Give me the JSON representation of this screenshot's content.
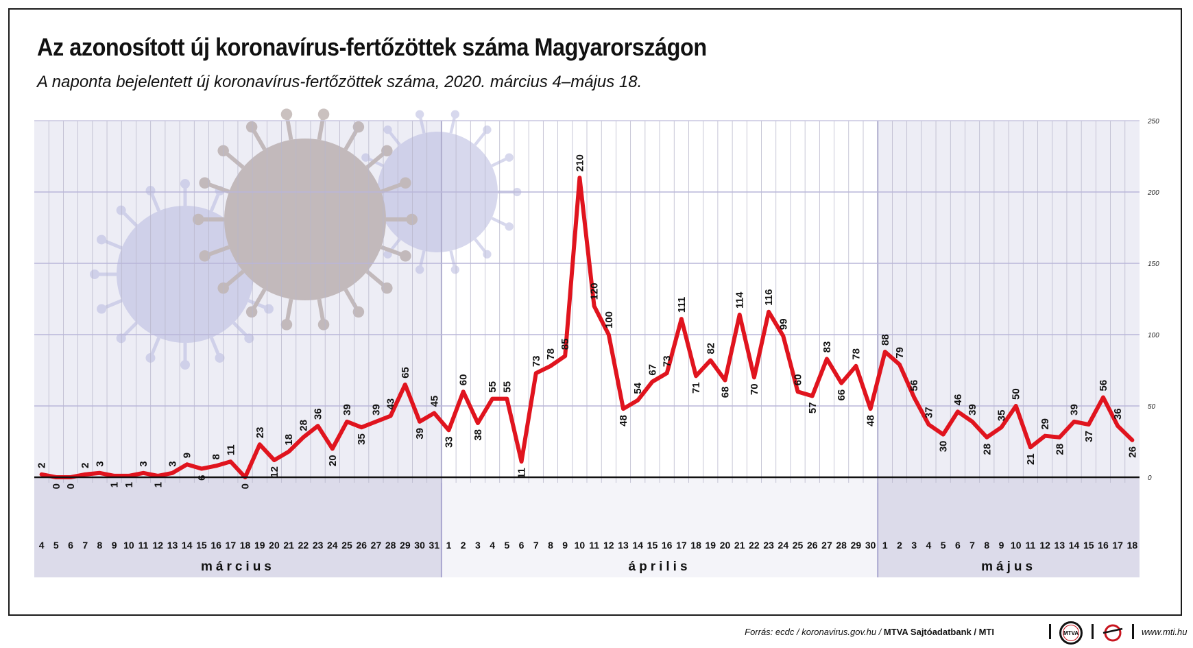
{
  "title": "Az azonosított új koronavírus-fertőzöttek száma Magyarországon",
  "subtitle": "A naponta bejelentett új koronavírus-fertőzöttek száma, 2020. március 4–május 18.",
  "footer": {
    "source_prefix": "Forrás: ecdc / koronavirus.gov.hu / ",
    "source_bold": "MTVA Sajtóadatbank / MTI",
    "logo_text": "MTVA",
    "website": "www.mti.hu"
  },
  "colors": {
    "line": "#e0141e",
    "shade": "#dcdbea",
    "shade_light": "#ededf5",
    "grid": "#b9b6d9"
  },
  "chart_data": {
    "type": "line",
    "ylim": [
      0,
      250
    ],
    "yticks": [
      0,
      50,
      100,
      150,
      200,
      250
    ],
    "months": [
      {
        "name": "március",
        "count": 28
      },
      {
        "name": "április",
        "count": 30
      },
      {
        "name": "május",
        "count": 18
      }
    ],
    "days": [
      "4",
      "5",
      "6",
      "7",
      "8",
      "9",
      "10",
      "11",
      "12",
      "13",
      "14",
      "15",
      "16",
      "17",
      "18",
      "19",
      "20",
      "21",
      "22",
      "23",
      "24",
      "25",
      "26",
      "27",
      "28",
      "29",
      "30",
      "31",
      "1",
      "2",
      "3",
      "4",
      "5",
      "6",
      "7",
      "8",
      "9",
      "10",
      "11",
      "12",
      "13",
      "14",
      "15",
      "16",
      "17",
      "18",
      "19",
      "20",
      "21",
      "22",
      "23",
      "24",
      "25",
      "26",
      "27",
      "28",
      "29",
      "30",
      "1",
      "2",
      "3",
      "4",
      "5",
      "6",
      "7",
      "8",
      "9",
      "10",
      "11",
      "12",
      "13",
      "14",
      "15",
      "16",
      "17",
      "18"
    ],
    "values": [
      2,
      0,
      0,
      2,
      3,
      1,
      1,
      3,
      1,
      3,
      9,
      6,
      8,
      11,
      0,
      23,
      12,
      18,
      28,
      36,
      20,
      39,
      35,
      39,
      43,
      65,
      39,
      45,
      33,
      60,
      38,
      55,
      55,
      11,
      73,
      78,
      85,
      210,
      120,
      100,
      48,
      54,
      67,
      73,
      111,
      71,
      82,
      68,
      114,
      70,
      116,
      99,
      60,
      57,
      83,
      66,
      78,
      48,
      88,
      79,
      56,
      37,
      30,
      46,
      39,
      28,
      35,
      50,
      21,
      29,
      28,
      39,
      37,
      56,
      36,
      26
    ]
  }
}
